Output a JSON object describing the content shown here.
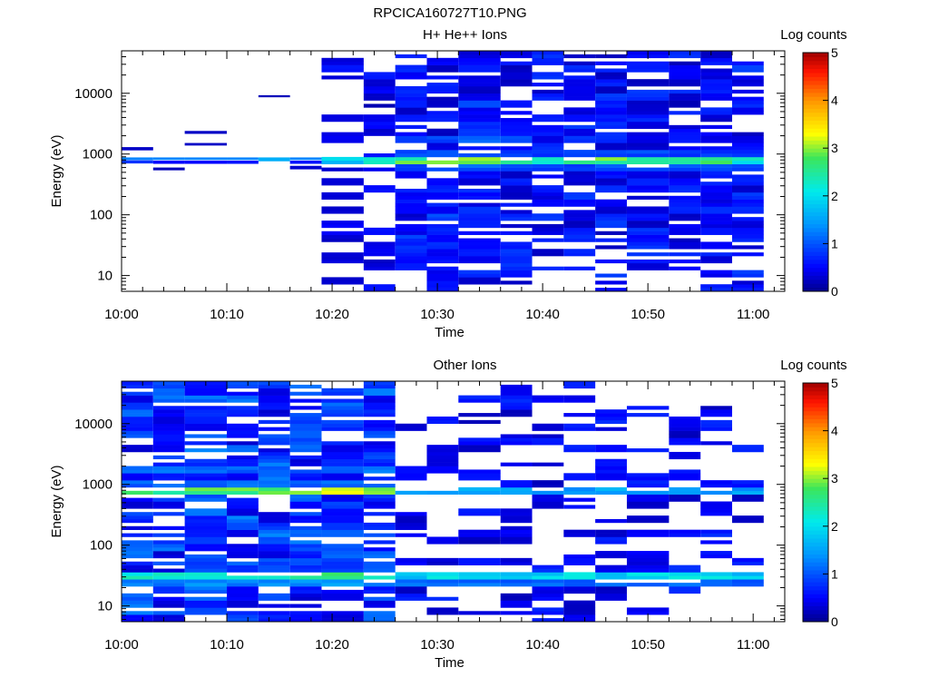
{
  "figure_title": "RPCICA160727T10.PNG",
  "chart_data": [
    {
      "type": "heatmap",
      "title": "H+ He++ Ions",
      "xlabel": "Time",
      "ylabel": "Energy (eV)",
      "x_scale": "time",
      "y_scale": "log",
      "xlim": [
        "10:00",
        "11:03"
      ],
      "ylim": [
        5.5,
        50000
      ],
      "x_ticks": [
        "10:00",
        "10:10",
        "10:20",
        "10:30",
        "10:40",
        "10:50",
        "11:00"
      ],
      "y_ticks": [
        {
          "value": 10,
          "label": "10"
        },
        {
          "value": 100,
          "label": "100"
        },
        {
          "value": 1000,
          "label": "1000"
        },
        {
          "value": 10000,
          "label": "10000"
        }
      ],
      "colorbar": {
        "label": "Log counts",
        "min": 0,
        "max": 5,
        "ticks": [
          "0",
          "1",
          "2",
          "3",
          "4",
          "5"
        ],
        "colormap": "rainbow"
      },
      "time_bins": [
        {
          "start": "10:00",
          "end": "10:03"
        },
        {
          "start": "10:03",
          "end": "10:06"
        },
        {
          "start": "10:06",
          "end": "10:10"
        },
        {
          "start": "10:10",
          "end": "10:13"
        },
        {
          "start": "10:13",
          "end": "10:16"
        },
        {
          "start": "10:16",
          "end": "10:19"
        },
        {
          "start": "10:19",
          "end": "10:23"
        },
        {
          "start": "10:23",
          "end": "10:26"
        },
        {
          "start": "10:26",
          "end": "10:29"
        },
        {
          "start": "10:29",
          "end": "10:32"
        },
        {
          "start": "10:32",
          "end": "10:36"
        },
        {
          "start": "10:36",
          "end": "10:39"
        },
        {
          "start": "10:39",
          "end": "10:42"
        },
        {
          "start": "10:42",
          "end": "10:45"
        },
        {
          "start": "10:45",
          "end": "10:48"
        },
        {
          "start": "10:48",
          "end": "10:52"
        },
        {
          "start": "10:52",
          "end": "10:55"
        },
        {
          "start": "10:55",
          "end": "10:58"
        },
        {
          "start": "10:58",
          "end": "11:01"
        }
      ],
      "columns": [
        {
          "bands": [
            {
              "emin": 1150,
              "emax": 1300,
              "v": 0.25
            },
            {
              "emin": 800,
              "emax": 880,
              "v": 1.3
            },
            {
              "emin": 700,
              "emax": 790,
              "v": 0.8
            }
          ]
        },
        {
          "bands": [
            {
              "emin": 800,
              "emax": 880,
              "v": 1.3
            },
            {
              "emin": 690,
              "emax": 780,
              "v": 0.5
            },
            {
              "emin": 540,
              "emax": 600,
              "v": 0.2
            }
          ]
        },
        {
          "bands": [
            {
              "emin": 2150,
              "emax": 2400,
              "v": 0.25
            },
            {
              "emin": 1380,
              "emax": 1520,
              "v": 0.25
            },
            {
              "emin": 800,
              "emax": 880,
              "v": 1.3
            },
            {
              "emin": 690,
              "emax": 780,
              "v": 0.5
            }
          ]
        },
        {
          "bands": [
            {
              "emin": 800,
              "emax": 880,
              "v": 1.3
            },
            {
              "emin": 690,
              "emax": 780,
              "v": 0.6
            }
          ]
        },
        {
          "bands": [
            {
              "emin": 8600,
              "emax": 9300,
              "v": 0.2
            },
            {
              "emin": 760,
              "emax": 880,
              "v": 1.6
            }
          ]
        },
        {
          "bands": [
            {
              "emin": 800,
              "emax": 880,
              "v": 1.3
            },
            {
              "emin": 690,
              "emax": 780,
              "v": 0.6
            },
            {
              "emin": 560,
              "emax": 640,
              "v": 0.3
            }
          ]
        },
        {
          "emin": 6,
          "emax": 30000,
          "base": 0.45,
          "fill": 0.5,
          "seed": 7,
          "peak": [
            {
              "e": 780,
              "w": 0.07,
              "v": 1.9
            }
          ]
        },
        {
          "emin": 6,
          "emax": 20000,
          "base": 0.4,
          "fill": 0.5,
          "seed": 8,
          "peak": [
            {
              "e": 780,
              "w": 0.07,
              "v": 2.2
            }
          ]
        },
        {
          "emin": 14,
          "emax": 45000,
          "base": 0.5,
          "fill": 0.85,
          "seed": 9,
          "peak": [
            {
              "e": 780,
              "w": 0.08,
              "v": 2.7
            },
            {
              "e": 1600,
              "w": 0.05,
              "v": 1.3
            }
          ]
        },
        {
          "emin": 7,
          "emax": 45000,
          "base": 0.55,
          "fill": 0.85,
          "seed": 10,
          "peak": [
            {
              "e": 780,
              "w": 0.08,
              "v": 2.9
            },
            {
              "e": 1600,
              "w": 0.05,
              "v": 1.3
            }
          ]
        },
        {
          "emin": 7,
          "emax": 45000,
          "base": 0.55,
          "fill": 0.85,
          "seed": 11,
          "peak": [
            {
              "e": 780,
              "w": 0.08,
              "v": 2.9
            },
            {
              "e": 1600,
              "w": 0.05,
              "v": 1.4
            }
          ]
        },
        {
          "emin": 9,
          "emax": 45000,
          "base": 0.5,
          "fill": 0.85,
          "seed": 12,
          "peak": [
            {
              "e": 780,
              "w": 0.08,
              "v": 2.6
            },
            {
              "e": 1600,
              "w": 0.05,
              "v": 1.3
            }
          ]
        },
        {
          "emin": 14,
          "emax": 45000,
          "base": 0.5,
          "fill": 0.85,
          "seed": 13,
          "peak": [
            {
              "e": 780,
              "w": 0.08,
              "v": 2.5
            }
          ]
        },
        {
          "emin": 14,
          "emax": 45000,
          "base": 0.5,
          "fill": 0.85,
          "seed": 14,
          "peak": [
            {
              "e": 780,
              "w": 0.08,
              "v": 2.6
            }
          ]
        },
        {
          "emin": 7,
          "emax": 45000,
          "base": 0.5,
          "fill": 0.85,
          "seed": 15,
          "peak": [
            {
              "e": 780,
              "w": 0.08,
              "v": 2.7
            }
          ]
        },
        {
          "emin": 16,
          "emax": 45000,
          "base": 0.5,
          "fill": 0.85,
          "seed": 16,
          "peak": [
            {
              "e": 780,
              "w": 0.08,
              "v": 2.7
            }
          ]
        },
        {
          "emin": 11,
          "emax": 45000,
          "base": 0.5,
          "fill": 0.85,
          "seed": 17,
          "peak": [
            {
              "e": 780,
              "w": 0.08,
              "v": 2.6
            }
          ]
        },
        {
          "emin": 7,
          "emax": 45000,
          "base": 0.5,
          "fill": 0.85,
          "seed": 18,
          "peak": [
            {
              "e": 780,
              "w": 0.08,
              "v": 2.5
            }
          ]
        },
        {
          "emin": 7,
          "emax": 45000,
          "base": 0.5,
          "fill": 0.85,
          "seed": 19,
          "peak": [
            {
              "e": 780,
              "w": 0.08,
              "v": 2.3
            }
          ]
        }
      ]
    },
    {
      "type": "heatmap",
      "title": "Other Ions",
      "xlabel": "Time",
      "ylabel": "Energy (eV)",
      "x_scale": "time",
      "y_scale": "log",
      "xlim": [
        "10:00",
        "11:03"
      ],
      "ylim": [
        5.5,
        50000
      ],
      "x_ticks": [
        "10:00",
        "10:10",
        "10:20",
        "10:30",
        "10:40",
        "10:50",
        "11:00"
      ],
      "y_ticks": [
        {
          "value": 10,
          "label": "10"
        },
        {
          "value": 100,
          "label": "100"
        },
        {
          "value": 1000,
          "label": "1000"
        },
        {
          "value": 10000,
          "label": "10000"
        }
      ],
      "colorbar": {
        "label": "Log counts",
        "min": 0,
        "max": 5,
        "ticks": [
          "0",
          "1",
          "2",
          "3",
          "4",
          "5"
        ],
        "colormap": "rainbow"
      },
      "time_bins": [
        {
          "start": "10:00",
          "end": "10:03"
        },
        {
          "start": "10:03",
          "end": "10:06"
        },
        {
          "start": "10:06",
          "end": "10:10"
        },
        {
          "start": "10:10",
          "end": "10:13"
        },
        {
          "start": "10:13",
          "end": "10:16"
        },
        {
          "start": "10:16",
          "end": "10:19"
        },
        {
          "start": "10:19",
          "end": "10:23"
        },
        {
          "start": "10:23",
          "end": "10:26"
        },
        {
          "start": "10:26",
          "end": "10:29"
        },
        {
          "start": "10:29",
          "end": "10:32"
        },
        {
          "start": "10:32",
          "end": "10:36"
        },
        {
          "start": "10:36",
          "end": "10:39"
        },
        {
          "start": "10:39",
          "end": "10:42"
        },
        {
          "start": "10:42",
          "end": "10:45"
        },
        {
          "start": "10:45",
          "end": "10:48"
        },
        {
          "start": "10:48",
          "end": "10:52"
        },
        {
          "start": "10:52",
          "end": "10:55"
        },
        {
          "start": "10:55",
          "end": "10:58"
        },
        {
          "start": "10:58",
          "end": "11:01"
        }
      ],
      "columns": [
        {
          "emin": 6,
          "emax": 45000,
          "base": 0.75,
          "fill": 0.9,
          "seed": 21,
          "peak": [
            {
              "e": 800,
              "w": 0.08,
              "v": 2.7
            },
            {
              "e": 30,
              "w": 0.09,
              "v": 2.3
            },
            {
              "e": 1600,
              "w": 0.05,
              "v": 1.5
            }
          ]
        },
        {
          "emin": 6,
          "emax": 45000,
          "base": 0.75,
          "fill": 0.9,
          "seed": 22,
          "peak": [
            {
              "e": 800,
              "w": 0.08,
              "v": 2.7
            },
            {
              "e": 30,
              "w": 0.09,
              "v": 2.3
            },
            {
              "e": 1600,
              "w": 0.05,
              "v": 1.5
            }
          ]
        },
        {
          "emin": 6,
          "emax": 45000,
          "base": 0.75,
          "fill": 0.9,
          "seed": 23,
          "peak": [
            {
              "e": 800,
              "w": 0.08,
              "v": 2.7
            },
            {
              "e": 30,
              "w": 0.09,
              "v": 2.3
            },
            {
              "e": 1600,
              "w": 0.05,
              "v": 1.5
            }
          ]
        },
        {
          "emin": 6,
          "emax": 45000,
          "base": 0.75,
          "fill": 0.9,
          "seed": 24,
          "peak": [
            {
              "e": 800,
              "w": 0.08,
              "v": 2.7
            },
            {
              "e": 30,
              "w": 0.09,
              "v": 2.3
            },
            {
              "e": 1600,
              "w": 0.05,
              "v": 1.5
            }
          ]
        },
        {
          "emin": 6,
          "emax": 45000,
          "base": 0.75,
          "fill": 0.9,
          "seed": 25,
          "peak": [
            {
              "e": 800,
              "w": 0.08,
              "v": 2.7
            },
            {
              "e": 30,
              "w": 0.09,
              "v": 2.3
            },
            {
              "e": 1600,
              "w": 0.05,
              "v": 1.5
            }
          ]
        },
        {
          "emin": 6,
          "emax": 45000,
          "base": 0.75,
          "fill": 0.9,
          "seed": 26,
          "peak": [
            {
              "e": 800,
              "w": 0.08,
              "v": 2.7
            },
            {
              "e": 30,
              "w": 0.09,
              "v": 2.3
            },
            {
              "e": 1600,
              "w": 0.05,
              "v": 1.5
            }
          ]
        },
        {
          "emin": 6,
          "emax": 45000,
          "base": 0.75,
          "fill": 0.9,
          "seed": 27,
          "peak": [
            {
              "e": 800,
              "w": 0.08,
              "v": 2.9
            },
            {
              "e": 30,
              "w": 0.09,
              "v": 2.5
            },
            {
              "e": 1600,
              "w": 0.05,
              "v": 1.6
            }
          ]
        },
        {
          "emin": 6,
          "emax": 45000,
          "base": 0.75,
          "fill": 0.9,
          "seed": 28,
          "peak": [
            {
              "e": 800,
              "w": 0.08,
              "v": 3.0
            },
            {
              "e": 30,
              "w": 0.09,
              "v": 2.5
            },
            {
              "e": 1600,
              "w": 0.05,
              "v": 1.7
            }
          ]
        },
        {
          "emin": 7,
          "emax": 14000,
          "base": 0.45,
          "fill": 0.42,
          "seed": 29,
          "peak": [
            {
              "e": 780,
              "w": 0.05,
              "v": 1.6
            },
            {
              "e": 30,
              "w": 0.09,
              "v": 2.0
            }
          ]
        },
        {
          "emin": 7,
          "emax": 45000,
          "base": 0.45,
          "fill": 0.42,
          "seed": 30,
          "peak": [
            {
              "e": 780,
              "w": 0.05,
              "v": 1.6
            },
            {
              "e": 30,
              "w": 0.09,
              "v": 2.0
            }
          ]
        },
        {
          "emin": 7,
          "emax": 30000,
          "base": 0.45,
          "fill": 0.42,
          "seed": 31,
          "peak": [
            {
              "e": 780,
              "w": 0.05,
              "v": 1.6
            },
            {
              "e": 30,
              "w": 0.09,
              "v": 2.0
            }
          ]
        },
        {
          "emin": 7,
          "emax": 45000,
          "base": 0.45,
          "fill": 0.42,
          "seed": 32,
          "peak": [
            {
              "e": 780,
              "w": 0.05,
              "v": 1.6
            },
            {
              "e": 30,
              "w": 0.09,
              "v": 2.0
            }
          ]
        },
        {
          "emin": 7,
          "emax": 30000,
          "base": 0.45,
          "fill": 0.42,
          "seed": 33,
          "peak": [
            {
              "e": 780,
              "w": 0.05,
              "v": 1.5
            },
            {
              "e": 30,
              "w": 0.09,
              "v": 2.0
            }
          ]
        },
        {
          "emin": 7,
          "emax": 45000,
          "base": 0.45,
          "fill": 0.42,
          "seed": 34,
          "peak": [
            {
              "e": 780,
              "w": 0.05,
              "v": 1.5
            },
            {
              "e": 30,
              "w": 0.09,
              "v": 2.0
            }
          ]
        },
        {
          "emin": 12,
          "emax": 30000,
          "base": 0.45,
          "fill": 0.42,
          "seed": 35,
          "peak": [
            {
              "e": 780,
              "w": 0.05,
              "v": 1.5
            },
            {
              "e": 30,
              "w": 0.09,
              "v": 2.0
            }
          ]
        },
        {
          "emin": 7,
          "emax": 30000,
          "base": 0.45,
          "fill": 0.42,
          "seed": 36,
          "peak": [
            {
              "e": 780,
              "w": 0.05,
              "v": 1.5
            },
            {
              "e": 30,
              "w": 0.09,
              "v": 2.0
            }
          ]
        },
        {
          "emin": 7,
          "emax": 30000,
          "base": 0.45,
          "fill": 0.42,
          "seed": 37,
          "peak": [
            {
              "e": 780,
              "w": 0.05,
              "v": 1.5
            },
            {
              "e": 30,
              "w": 0.09,
              "v": 2.0
            }
          ]
        },
        {
          "emin": 7,
          "emax": 25000,
          "base": 0.45,
          "fill": 0.42,
          "seed": 38,
          "peak": [
            {
              "e": 780,
              "w": 0.05,
              "v": 1.5
            },
            {
              "e": 30,
              "w": 0.09,
              "v": 2.0
            }
          ]
        },
        {
          "emin": 25,
          "emax": 12000,
          "base": 0.45,
          "fill": 0.42,
          "seed": 39,
          "peak": [
            {
              "e": 780,
              "w": 0.05,
              "v": 1.4
            },
            {
              "e": 30,
              "w": 0.09,
              "v": 1.9
            }
          ]
        }
      ]
    }
  ]
}
